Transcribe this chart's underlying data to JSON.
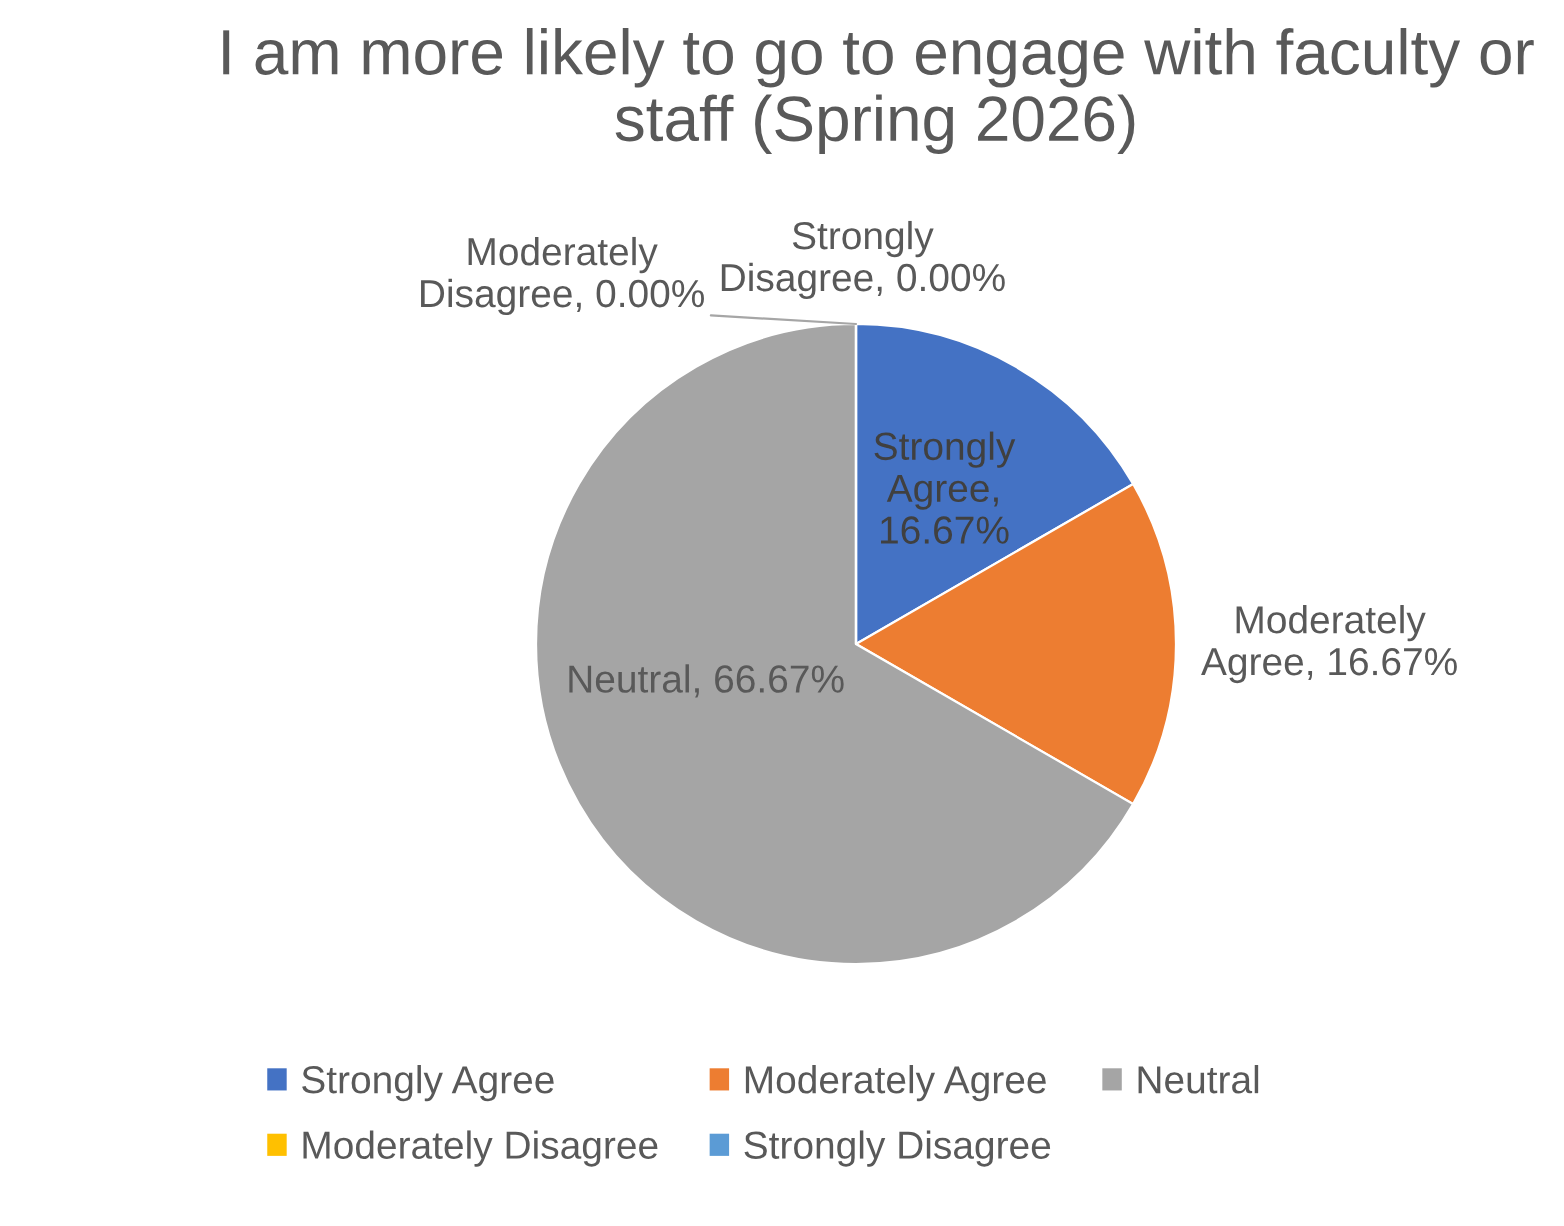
{
  "chart_data": {
    "type": "pie",
    "title": "I am more likely to go to engage with faculty or staff (Spring 2026)",
    "categories": [
      "Strongly Agree",
      "Moderately Agree",
      "Neutral",
      "Moderately Disagree",
      "Strongly Disagree"
    ],
    "values": [
      16.67,
      16.67,
      66.67,
      0,
      0
    ],
    "colors": [
      "#4472c4",
      "#ed7d31",
      "#a5a5a5",
      "#ffc000",
      "#5b9bd5"
    ],
    "value_labels": [
      "Strongly Agree, 16.67%",
      "Moderately Agree, 16.67%",
      "Neutral, 66.67%",
      "Moderately Disagree, 0.00%",
      "Strongly Disagree, 0.00%"
    ],
    "legend": "bottom"
  }
}
